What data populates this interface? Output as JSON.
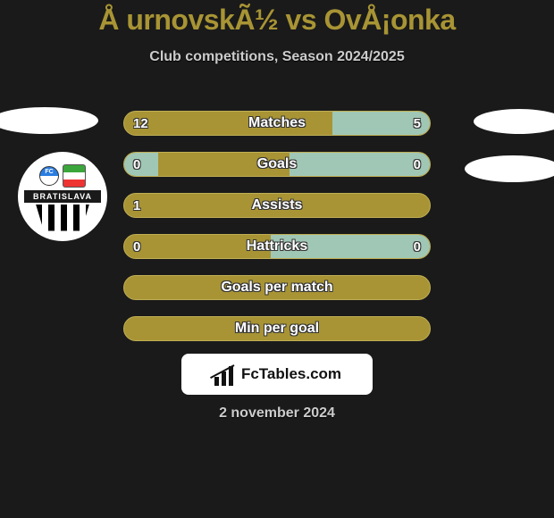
{
  "title": "Å urnovskÃ½ vs OvÅ¡onka",
  "subtitle": "Club competitions, Season 2024/2025",
  "badge": {
    "ribbon": "BRATISLAVA"
  },
  "colors": {
    "accent": "#a89434",
    "alt_fill": "#a0c7b5",
    "background": "#1a1a1a",
    "white": "#ffffff",
    "text_muted": "#cccccc"
  },
  "bars": [
    {
      "label": "Matches",
      "left": "12",
      "right": "5",
      "right_seg_pct": 32,
      "left_val_show": true,
      "right_val_show": true
    },
    {
      "label": "Goals",
      "left": "0",
      "right": "0",
      "right_seg_pct": 46,
      "left_val_show": true,
      "right_val_show": true,
      "left_faded_pct": 11,
      "right_faded": true
    },
    {
      "label": "Assists",
      "left": "1",
      "right": "",
      "right_seg_pct": 0,
      "left_val_show": true,
      "right_val_show": false
    },
    {
      "label": "Hattricks",
      "left": "0",
      "right": "0",
      "right_seg_pct": 52,
      "left_val_show": true,
      "right_val_show": true,
      "right_faded": true
    },
    {
      "label": "Goals per match",
      "left": "",
      "right": "",
      "right_seg_pct": 0,
      "left_val_show": false,
      "right_val_show": false
    },
    {
      "label": "Min per goal",
      "left": "",
      "right": "",
      "right_seg_pct": 0,
      "left_val_show": false,
      "right_val_show": false
    }
  ],
  "logo": {
    "text": "FcTables.com"
  },
  "date": "2 november 2024"
}
